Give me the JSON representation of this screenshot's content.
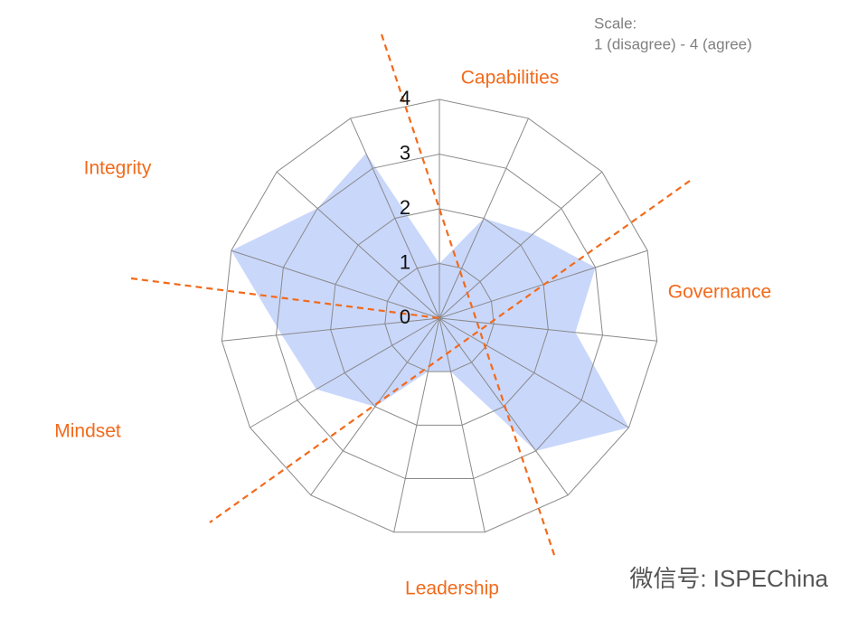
{
  "chart_data": {
    "type": "radar",
    "scale_note": [
      "Scale:",
      "1 (disagree) - 4 (agree)"
    ],
    "groups": [
      "Capabilities",
      "Governance",
      "Leadership",
      "Mindset",
      "Integrity"
    ],
    "watermark": "微信号: ISPEChina",
    "categories": [
      null,
      null,
      null,
      null,
      null,
      null,
      null,
      null,
      null,
      null,
      null,
      null,
      null,
      null,
      null
    ],
    "values": [
      1,
      2,
      2.3,
      3,
      2.5,
      4,
      3,
      1,
      1,
      2,
      2.6,
      2.9,
      4,
      3,
      3.3
    ],
    "color": "#c9d7fb",
    "ylim": [
      0,
      4
    ],
    "yticks": [
      0,
      1,
      2,
      3,
      4
    ],
    "grid": true
  }
}
